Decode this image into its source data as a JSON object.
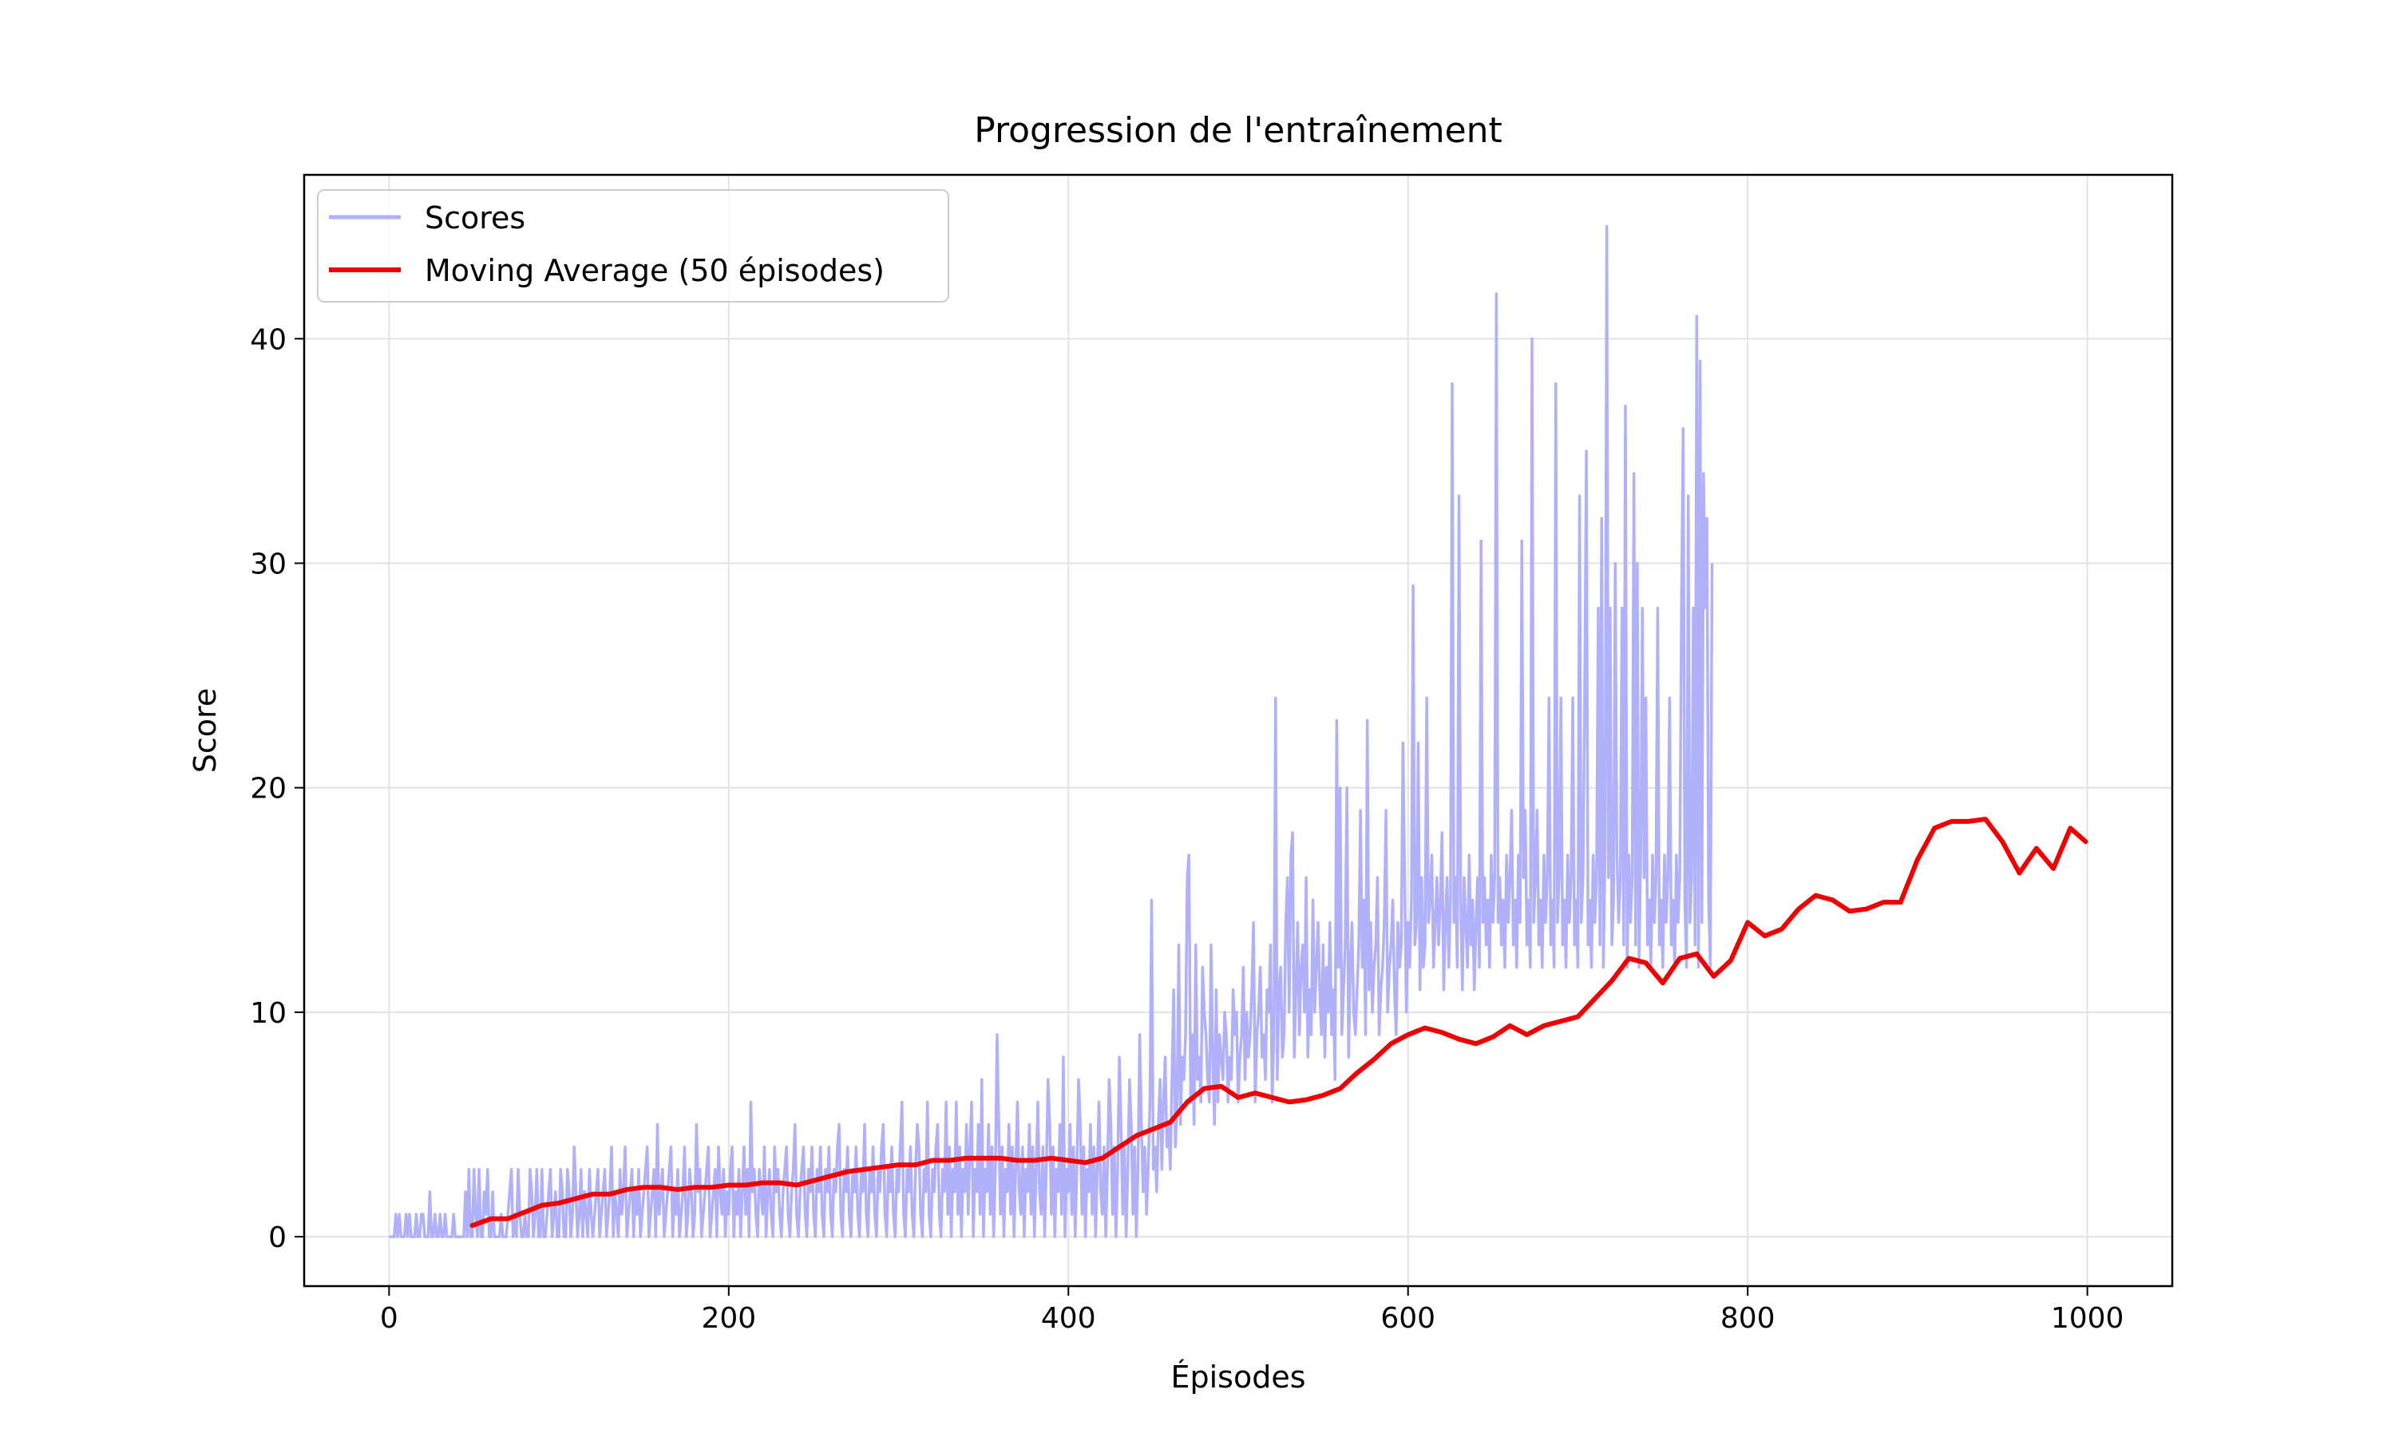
{
  "chart_data": {
    "type": "line",
    "title": "Progression de l'entraînement",
    "xlabel": "Épisodes",
    "ylabel": "Score",
    "xlim": [
      -50,
      1050
    ],
    "ylim": [
      -2.2,
      47.3
    ],
    "xticks": [
      0,
      200,
      400,
      600,
      800,
      1000
    ],
    "yticks": [
      0,
      10,
      20,
      30,
      40
    ],
    "grid": true,
    "legend_position": "upper-left",
    "series": [
      {
        "name": "Scores",
        "color": "#b0b0fb",
        "note_episodes": "x values are episode indices 0..999; values below are per-episode scores",
        "x_start": 0,
        "values": [
          0,
          0,
          0,
          0,
          1,
          0,
          1,
          0,
          0,
          0,
          1,
          0,
          1,
          0,
          0,
          0,
          1,
          0,
          0,
          1,
          1,
          0,
          0,
          0,
          2,
          0,
          0,
          1,
          0,
          0,
          1,
          0,
          0,
          1,
          0,
          0,
          0,
          0,
          1,
          0,
          0,
          0,
          0,
          0,
          0,
          2,
          0,
          3,
          0,
          0,
          3,
          1,
          0,
          3,
          0,
          0,
          2,
          1,
          3,
          0,
          0,
          2,
          0,
          0,
          0,
          0,
          1,
          0,
          0,
          0,
          1,
          2,
          3,
          0,
          1,
          0,
          3,
          1,
          0,
          0,
          1,
          0,
          0,
          3,
          2,
          0,
          1,
          3,
          0,
          0,
          3,
          0,
          0,
          1,
          2,
          3,
          0,
          1,
          2,
          0,
          0,
          3,
          2,
          0,
          0,
          3,
          2,
          0,
          1,
          4,
          2,
          0,
          1,
          3,
          0,
          2,
          1,
          0,
          3,
          1,
          0,
          1,
          2,
          3,
          0,
          1,
          2,
          3,
          0,
          1,
          2,
          4,
          0,
          2,
          1,
          0,
          3,
          1,
          2,
          4,
          0,
          1,
          2,
          3,
          0,
          2,
          1,
          3,
          0,
          1,
          2,
          3,
          4,
          0,
          1,
          2,
          3,
          0,
          5,
          1,
          2,
          3,
          0,
          1,
          2,
          3,
          4,
          0,
          2,
          1,
          3,
          0,
          1,
          2,
          4,
          0,
          1,
          3,
          2,
          0,
          1,
          5,
          2,
          3,
          0,
          1,
          2,
          3,
          4,
          0,
          1,
          2,
          3,
          0,
          4,
          2,
          1,
          3,
          0,
          2,
          1,
          3,
          4,
          0,
          2,
          1,
          3,
          0,
          2,
          4,
          1,
          3,
          0,
          6,
          2,
          3,
          1,
          0,
          3,
          2,
          1,
          4,
          0,
          2,
          3,
          1,
          0,
          4,
          2,
          3,
          1,
          0,
          2,
          3,
          4,
          1,
          0,
          2,
          3,
          5,
          1,
          0,
          2,
          3,
          4,
          1,
          0,
          3,
          2,
          4,
          1,
          0,
          3,
          2,
          4,
          1,
          0,
          3,
          2,
          4,
          1,
          0,
          3,
          2,
          4,
          5,
          1,
          0,
          3,
          2,
          4,
          1,
          0,
          3,
          2,
          4,
          1,
          0,
          3,
          2,
          5,
          1,
          0,
          3,
          2,
          4,
          1,
          0,
          3,
          2,
          4,
          5,
          1,
          0,
          3,
          2,
          4,
          1,
          0,
          3,
          2,
          4,
          6,
          1,
          0,
          3,
          2,
          4,
          1,
          0,
          3,
          5,
          4,
          1,
          0,
          3,
          2,
          6,
          1,
          0,
          3,
          2,
          4,
          5,
          1,
          0,
          3,
          2,
          6,
          1,
          4,
          0,
          3,
          2,
          6,
          1,
          4,
          0,
          3,
          2,
          5,
          1,
          4,
          6,
          0,
          3,
          2,
          5,
          1,
          7,
          0,
          3,
          2,
          5,
          1,
          4,
          0,
          3,
          9,
          5,
          1,
          4,
          0,
          3,
          2,
          5,
          1,
          4,
          0,
          3,
          6,
          2,
          1,
          4,
          0,
          3,
          2,
          5,
          1,
          4,
          0,
          3,
          6,
          2,
          1,
          4,
          0,
          3,
          7,
          5,
          1,
          4,
          0,
          3,
          2,
          5,
          1,
          8,
          0,
          3,
          2,
          5,
          1,
          4,
          0,
          3,
          7,
          5,
          1,
          4,
          0,
          3,
          2,
          5,
          1,
          4,
          0,
          3,
          6,
          2,
          1,
          4,
          0,
          3,
          7,
          5,
          1,
          4,
          0,
          3,
          8,
          5,
          1,
          4,
          0,
          3,
          7,
          5,
          1,
          4,
          0,
          3,
          9,
          5,
          2,
          4,
          1,
          3,
          6,
          15,
          3,
          4,
          2,
          5,
          7,
          3,
          6,
          8,
          4,
          5,
          3,
          7,
          11,
          4,
          6,
          13,
          5,
          8,
          7,
          9,
          16,
          17,
          6,
          9,
          5,
          13,
          7,
          8,
          6,
          12,
          10,
          9,
          7,
          6,
          13,
          8,
          5,
          11,
          6,
          9,
          8,
          7,
          10,
          9,
          6,
          8,
          7,
          11,
          9,
          10,
          6,
          8,
          9,
          12,
          7,
          10,
          8,
          9,
          11,
          14,
          6,
          9,
          10,
          12,
          8,
          9,
          7,
          11,
          10,
          13,
          6,
          9,
          24,
          7,
          11,
          12,
          8,
          9,
          14,
          16,
          10,
          17,
          18,
          8,
          11,
          14,
          9,
          12,
          13,
          10,
          16,
          8,
          11,
          9,
          15,
          10,
          12,
          14,
          11,
          9,
          13,
          8,
          12,
          10,
          14,
          9,
          11,
          7,
          23,
          12,
          20,
          9,
          11,
          13,
          20,
          8,
          12,
          14,
          10,
          9,
          11,
          13,
          19,
          12,
          15,
          9,
          23,
          11,
          14,
          10,
          12,
          13,
          16,
          9,
          11,
          12,
          14,
          19,
          10,
          12,
          13,
          15,
          11,
          9,
          14,
          12,
          13,
          22,
          16,
          10,
          14,
          12,
          15,
          29,
          13,
          14,
          22,
          11,
          16,
          12,
          13,
          24,
          14,
          15,
          17,
          12,
          14,
          16,
          13,
          15,
          18,
          11,
          14,
          16,
          12,
          15,
          38,
          14,
          16,
          12,
          33,
          15,
          11,
          16,
          14,
          12,
          17,
          13,
          15,
          11,
          14,
          16,
          12,
          31,
          14,
          16,
          13,
          15,
          12,
          17,
          14,
          16,
          42,
          14,
          16,
          13,
          15,
          12,
          17,
          14,
          16,
          19,
          13,
          15,
          12,
          17,
          14,
          31,
          16,
          19,
          13,
          15,
          12,
          40,
          14,
          16,
          19,
          13,
          15,
          12,
          17,
          14,
          16,
          24,
          13,
          15,
          12,
          38,
          14,
          16,
          24,
          13,
          15,
          12,
          17,
          14,
          16,
          24,
          13,
          15,
          12,
          33,
          14,
          16,
          24,
          35,
          13,
          15,
          12,
          17,
          14,
          16,
          28,
          13,
          32,
          12,
          17,
          45,
          16,
          28,
          13,
          15,
          30,
          17,
          14,
          16,
          28,
          13,
          37,
          12,
          17,
          14,
          16,
          34,
          13,
          30,
          12,
          17,
          28,
          16,
          24,
          13,
          15,
          12,
          17,
          14,
          16,
          28,
          13,
          15,
          12,
          17,
          14,
          16,
          24,
          13,
          15,
          12,
          17,
          14,
          16,
          28,
          36,
          15,
          12,
          33,
          14,
          16,
          28,
          13,
          41,
          12,
          39,
          14,
          34,
          28,
          32,
          15,
          12,
          30
        ]
      },
      {
        "name": "Moving Average (50 épisodes)",
        "color": "#f00000",
        "x": [
          49,
          60,
          70,
          80,
          90,
          100,
          110,
          120,
          130,
          140,
          150,
          160,
          170,
          180,
          190,
          200,
          210,
          220,
          230,
          240,
          250,
          260,
          270,
          280,
          290,
          300,
          310,
          320,
          330,
          340,
          350,
          360,
          370,
          380,
          390,
          400,
          410,
          420,
          430,
          440,
          450,
          460,
          470,
          480,
          490,
          500,
          510,
          520,
          530,
          540,
          550,
          560,
          570,
          580,
          590,
          600,
          610,
          620,
          630,
          640,
          650,
          660,
          670,
          680,
          690,
          700,
          710,
          720,
          730,
          740,
          750,
          760,
          770,
          780,
          790,
          800,
          810,
          820,
          830,
          840,
          850,
          860,
          870,
          880,
          890,
          900,
          910,
          920,
          930,
          940,
          950,
          960,
          970,
          980,
          990,
          999
        ],
        "values": [
          0.5,
          0.8,
          0.8,
          1.1,
          1.4,
          1.5,
          1.7,
          1.9,
          1.9,
          2.1,
          2.2,
          2.2,
          2.1,
          2.2,
          2.2,
          2.3,
          2.3,
          2.4,
          2.4,
          2.3,
          2.5,
          2.7,
          2.9,
          3.0,
          3.1,
          3.2,
          3.2,
          3.4,
          3.4,
          3.5,
          3.5,
          3.5,
          3.4,
          3.4,
          3.5,
          3.4,
          3.3,
          3.5,
          4.0,
          4.5,
          4.8,
          5.1,
          6.0,
          6.6,
          6.7,
          6.2,
          6.4,
          6.2,
          6.0,
          6.1,
          6.3,
          6.6,
          7.3,
          7.9,
          8.6,
          9.0,
          9.3,
          9.1,
          8.8,
          8.6,
          8.9,
          9.4,
          9.0,
          9.4,
          9.6,
          9.8,
          10.6,
          11.4,
          12.4,
          12.2,
          11.3,
          12.4,
          12.6,
          11.6,
          12.3,
          14.0,
          13.4,
          13.7,
          14.6,
          15.2,
          15.0,
          14.5,
          14.6,
          14.9,
          14.9,
          16.8,
          18.2,
          18.5,
          18.5,
          18.6,
          17.6,
          16.2,
          17.3,
          16.4,
          18.2,
          17.6
        ]
      }
    ]
  }
}
